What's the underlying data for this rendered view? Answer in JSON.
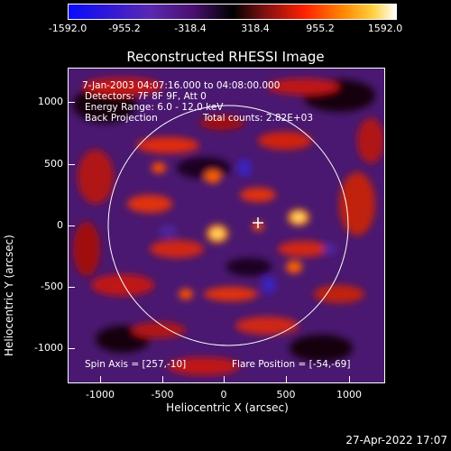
{
  "colorbar": {
    "ticks": [
      "-1592.0",
      "-955.2",
      "-318.4",
      "318.4",
      "955.2",
      "1592.0"
    ]
  },
  "title": "Reconstructed RHESSI Image",
  "annotations": {
    "time": "7-Jan-2003 04:07:16.000 to 04:08:00.000",
    "detectors": "Detectors: 7F 8F 9F, Att 0",
    "energy": "Energy Range: 6.0 - 12.0 keV",
    "method": "Back Projection",
    "counts": "Total counts: 2.82E+03",
    "spin_axis": "Spin Axis = [257,-10]",
    "flare_position": "Flare Position = [-54,-69]"
  },
  "axes": {
    "xlabel": "Heliocentric X (arcsec)",
    "ylabel": "Heliocentric Y (arcsec)",
    "xticks": [
      "-1000",
      "-500",
      "0",
      "500",
      "1000"
    ],
    "yticks": [
      "1000",
      "500",
      "0",
      "-500",
      "-1000"
    ]
  },
  "footer": {
    "date": "27-Apr-2022 17:07"
  },
  "colors": {
    "background": "#000000",
    "axis": "#ffffff",
    "image_base": "#4a1870"
  }
}
